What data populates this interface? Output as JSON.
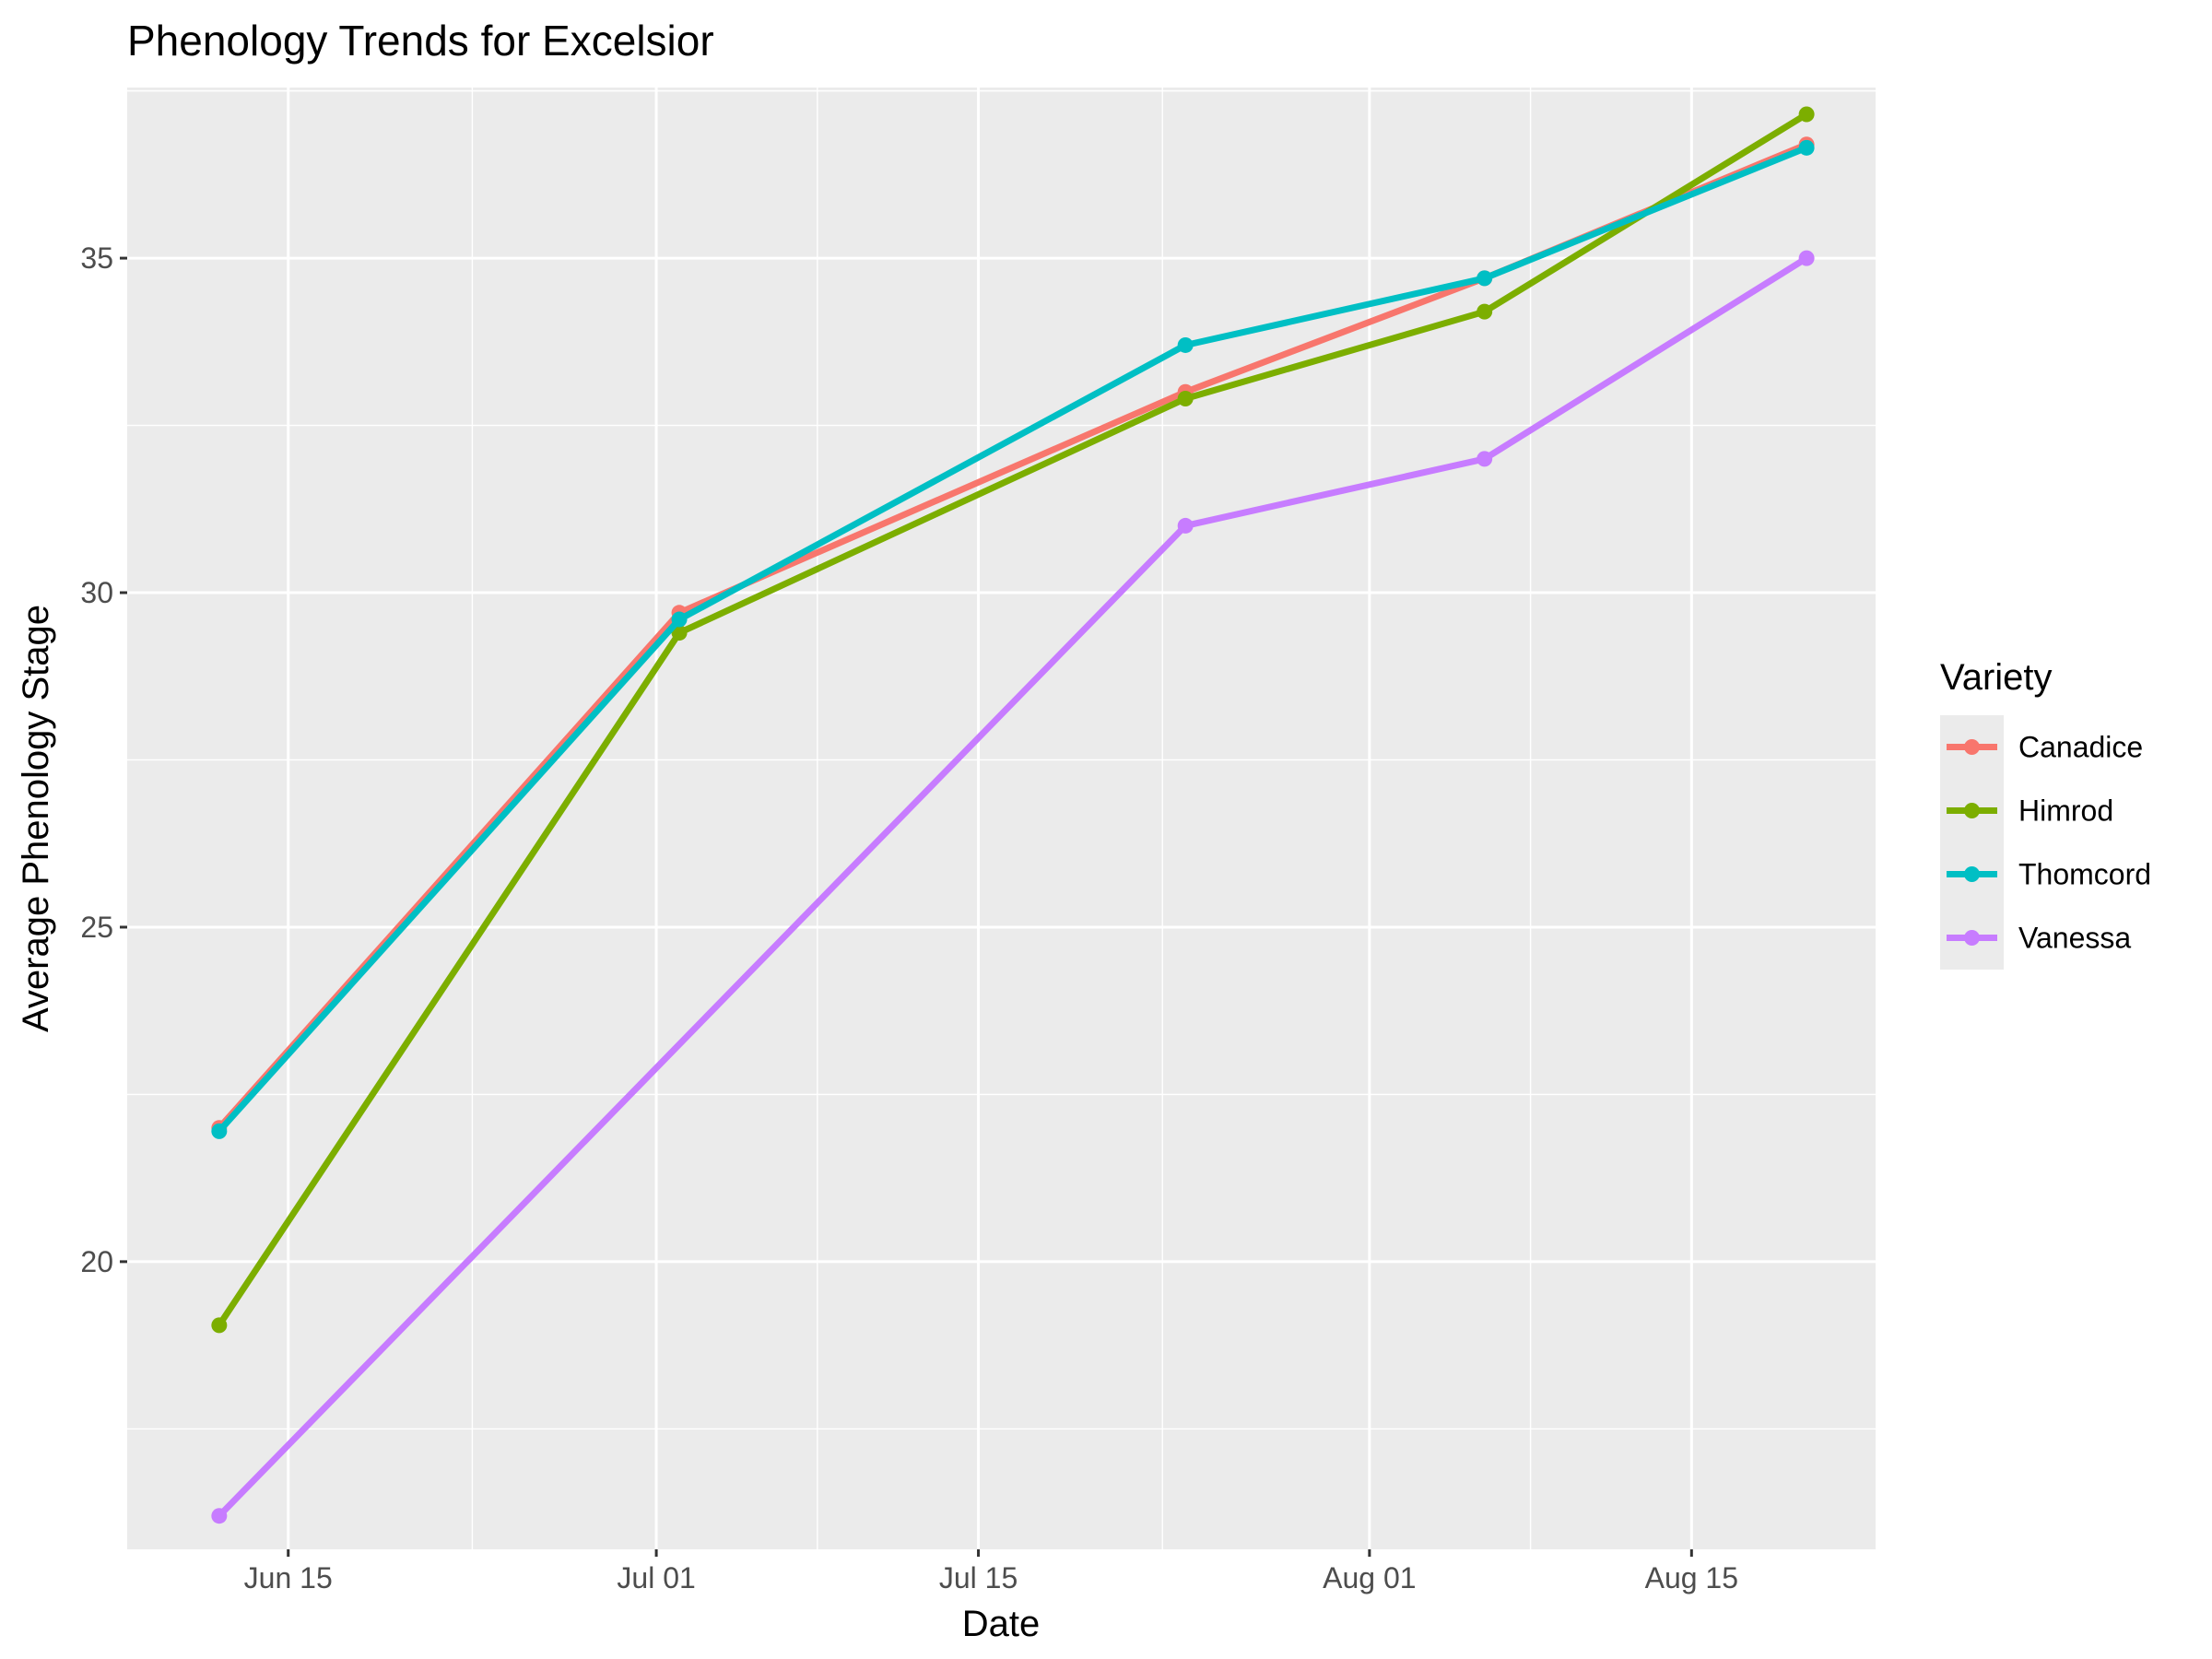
{
  "chart_data": {
    "type": "line",
    "title": "Phenology Trends for Excelsior",
    "xlabel": "Date",
    "ylabel": "Average Phenology Stage",
    "x": [
      "2024-06-12",
      "2024-07-02",
      "2024-07-24",
      "2024-08-06",
      "2024-08-20"
    ],
    "xlim": [
      "2024-06-08",
      "2024-08-23"
    ],
    "ylim": [
      15.7,
      37.55
    ],
    "x_ticks": [
      {
        "date": "2024-06-15",
        "label": "Jun 15"
      },
      {
        "date": "2024-07-01",
        "label": "Jul 01"
      },
      {
        "date": "2024-07-15",
        "label": "Jul 15"
      },
      {
        "date": "2024-08-01",
        "label": "Aug 01"
      },
      {
        "date": "2024-08-15",
        "label": "Aug 15"
      }
    ],
    "x_minor": [
      "2024-06-23",
      "2024-07-08",
      "2024-07-23",
      "2024-08-08"
    ],
    "y_ticks": [
      20,
      25,
      30,
      35
    ],
    "y_minor": [
      17.5,
      22.5,
      27.5,
      32.5,
      37.5
    ],
    "grid": true,
    "legend_title": "Variety",
    "legend_position": "right",
    "series": [
      {
        "name": "Canadice",
        "color": "#F8766D",
        "values": [
          22.0,
          29.7,
          33.0,
          34.7,
          36.7
        ]
      },
      {
        "name": "Himrod",
        "color": "#7CAE00",
        "values": [
          19.05,
          29.4,
          32.9,
          34.2,
          37.15
        ]
      },
      {
        "name": "Thomcord",
        "color": "#00BFC4",
        "values": [
          21.95,
          29.6,
          33.7,
          34.7,
          36.65
        ]
      },
      {
        "name": "Vanessa",
        "color": "#C77CFF",
        "values": [
          16.2,
          null,
          31.0,
          32.0,
          35.0
        ]
      }
    ]
  }
}
